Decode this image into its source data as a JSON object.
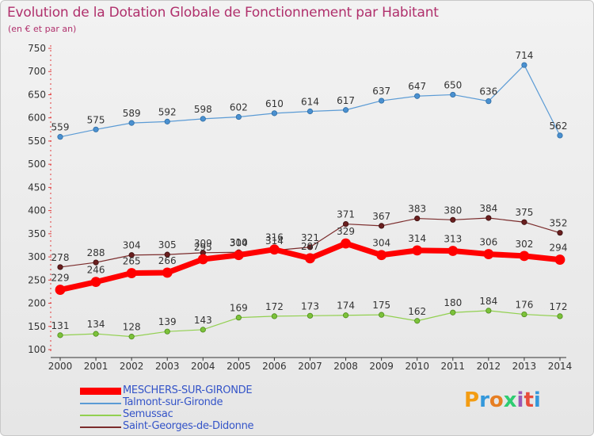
{
  "header": {
    "title": "Evolution de la Dotation Globale de Fonctionnement par Habitant",
    "subtitle": "(en € et par an)"
  },
  "chart_data": {
    "type": "line",
    "x": [
      "2000",
      "2001",
      "2002",
      "2003",
      "2004",
      "2005",
      "2006",
      "2007",
      "2008",
      "2009",
      "2010",
      "2011",
      "2012",
      "2013",
      "2014"
    ],
    "ylim": [
      100,
      750
    ],
    "yticks": [
      100,
      150,
      200,
      250,
      300,
      350,
      400,
      450,
      500,
      550,
      600,
      650,
      700,
      750
    ],
    "grid": false,
    "legend_position": "bottom-left",
    "series": [
      {
        "name": "Talmont-sur-Gironde",
        "color": "#5b9bd5",
        "values": [
          559,
          575,
          589,
          592,
          598,
          602,
          610,
          614,
          617,
          637,
          647,
          650,
          636,
          714,
          562
        ]
      },
      {
        "name": "Semussac",
        "color": "#92d050",
        "values": [
          131,
          134,
          128,
          139,
          143,
          169,
          172,
          173,
          174,
          175,
          162,
          180,
          184,
          176,
          172
        ]
      },
      {
        "name": "Saint-Georges-de-Didonne",
        "color": "#7b2c2c",
        "values": [
          278,
          288,
          304,
          305,
          309,
          310,
          314,
          321,
          371,
          367,
          383,
          380,
          384,
          375,
          352
        ]
      },
      {
        "name": "MESCHERS-SUR-GIRONDE",
        "color": "#ff0000",
        "values": [
          229,
          246,
          265,
          266,
          295,
          304,
          316,
          297,
          329,
          304,
          314,
          313,
          306,
          302,
          294
        ]
      }
    ],
    "data_labels": {
      "Saint-Georges-de-Didonne": [
        "278",
        "288",
        "304",
        "305",
        "309",
        "310",
        "314",
        "321",
        "371",
        "367",
        "383",
        "380",
        "384",
        "375",
        "352"
      ],
      "MESCHERS-SUR-GIRONDE": [
        "229",
        "246",
        "265",
        "266",
        "295",
        "304",
        "316",
        "297",
        "329",
        "304",
        "314",
        "313",
        "306",
        "302",
        "294"
      ]
    }
  },
  "legend": {
    "items": [
      {
        "label": "MESCHERS-SUR-GIRONDE",
        "color": "#ff0000"
      },
      {
        "label": "Talmont-sur-Gironde",
        "color": "#5b9bd5"
      },
      {
        "label": "Semussac",
        "color": "#92d050"
      },
      {
        "label": "Saint-Georges-de-Didonne",
        "color": "#7b2c2c"
      }
    ]
  },
  "logo": {
    "text": "Proxiti",
    "colors": [
      "#f39c12",
      "#3498db",
      "#e67e22",
      "#2ecc71",
      "#9b59b6",
      "#e74c3c",
      "#3498db"
    ]
  }
}
